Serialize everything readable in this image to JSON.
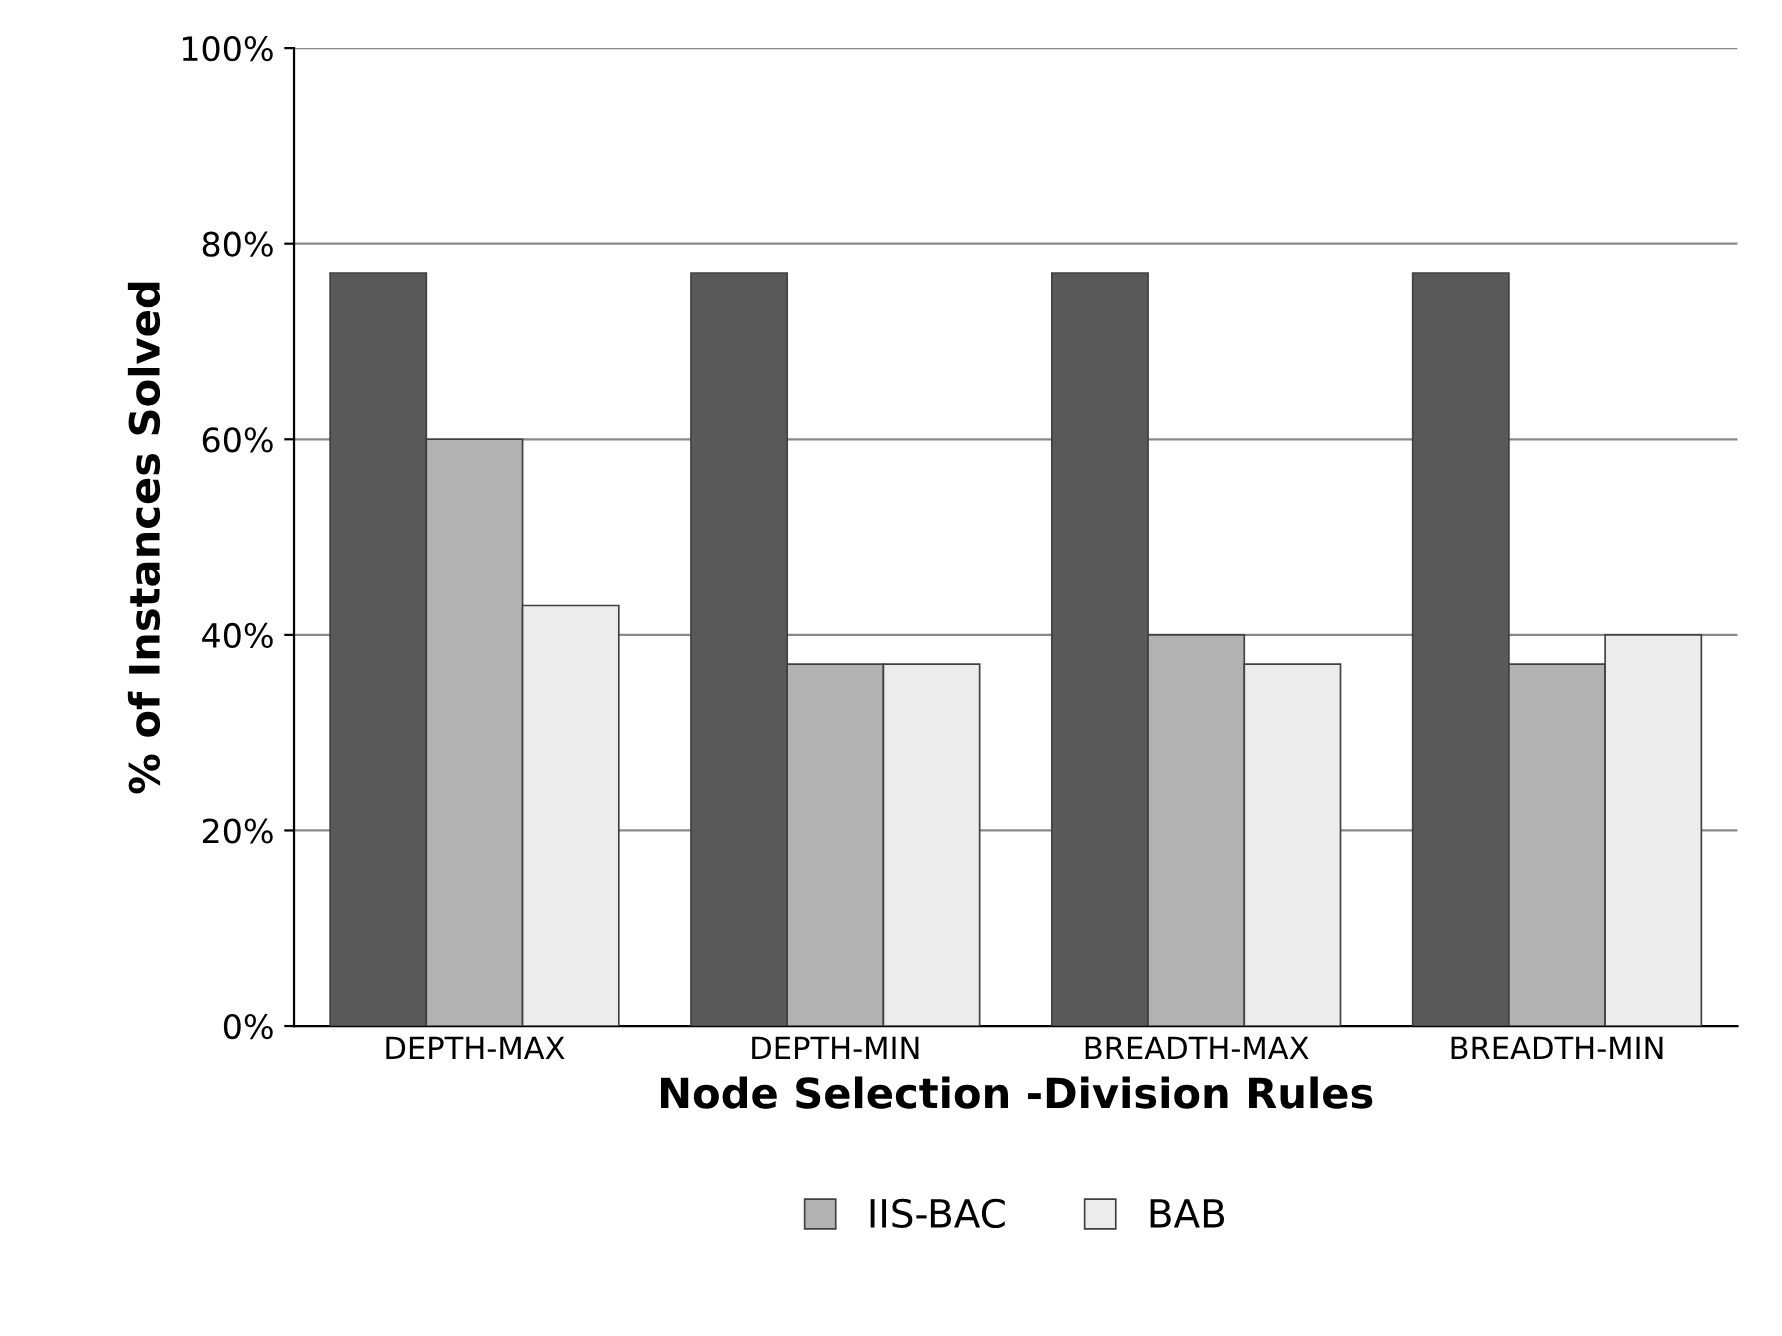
{
  "chart_data": {
    "type": "bar",
    "xlabel": "Node Selection -Division Rules",
    "ylabel": "% of Instances Solved",
    "categories": [
      "DEPTH-MAX",
      "DEPTH-MIN",
      "BREADTH-MAX",
      "BREADTH-MIN"
    ],
    "series": [
      {
        "color": "#595959",
        "values": [
          77,
          77,
          77,
          77
        ]
      },
      {
        "name": "IIS-BAC",
        "color": "#b2b2b2",
        "values": [
          60,
          37,
          40,
          37
        ]
      },
      {
        "name": "BAB",
        "color": "#ececec",
        "values": [
          43,
          37,
          37,
          40
        ]
      }
    ],
    "ylim": [
      0,
      100
    ],
    "yticks": [
      {
        "value": 0,
        "label": "0%"
      },
      {
        "value": 20,
        "label": "20%"
      },
      {
        "value": 40,
        "label": "40%"
      },
      {
        "value": 60,
        "label": "60%"
      },
      {
        "value": 80,
        "label": "80%"
      },
      {
        "value": 100,
        "label": "100%"
      }
    ],
    "grid": "y",
    "legend": "bottom"
  }
}
